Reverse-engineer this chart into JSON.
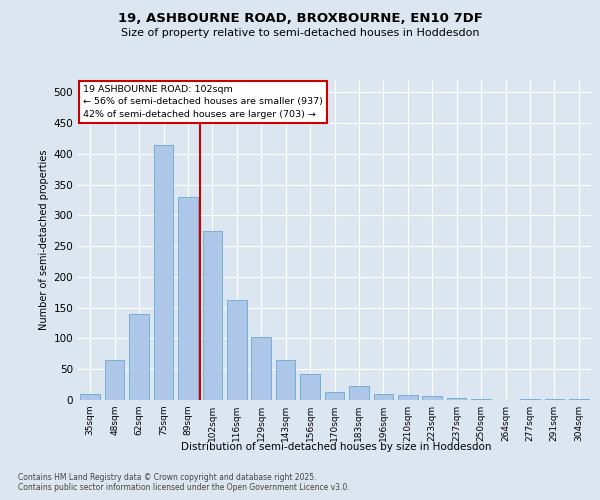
{
  "title1": "19, ASHBOURNE ROAD, BROXBOURNE, EN10 7DF",
  "title2": "Size of property relative to semi-detached houses in Hoddesdon",
  "xlabel": "Distribution of semi-detached houses by size in Hoddesdon",
  "ylabel": "Number of semi-detached properties",
  "annotation_title": "19 ASHBOURNE ROAD: 102sqm",
  "annotation_line1": "← 56% of semi-detached houses are smaller (937)",
  "annotation_line2": "42% of semi-detached houses are larger (703) →",
  "footer1": "Contains HM Land Registry data © Crown copyright and database right 2025.",
  "footer2": "Contains public sector information licensed under the Open Government Licence v3.0.",
  "bar_color": "#aec6e8",
  "bar_edge_color": "#6aaad4",
  "vline_color": "#cc0000",
  "background_color": "#dce6f0",
  "categories": [
    "35sqm",
    "48sqm",
    "62sqm",
    "75sqm",
    "89sqm",
    "102sqm",
    "116sqm",
    "129sqm",
    "143sqm",
    "156sqm",
    "170sqm",
    "183sqm",
    "196sqm",
    "210sqm",
    "223sqm",
    "237sqm",
    "250sqm",
    "264sqm",
    "277sqm",
    "291sqm",
    "304sqm"
  ],
  "values": [
    10,
    65,
    140,
    415,
    330,
    275,
    163,
    103,
    65,
    42,
    13,
    22,
    10,
    8,
    6,
    3,
    2,
    0,
    1,
    1,
    2
  ],
  "ylim": [
    0,
    520
  ],
  "yticks": [
    0,
    50,
    100,
    150,
    200,
    250,
    300,
    350,
    400,
    450,
    500
  ],
  "bar_width": 0.8,
  "vline_index": 5
}
